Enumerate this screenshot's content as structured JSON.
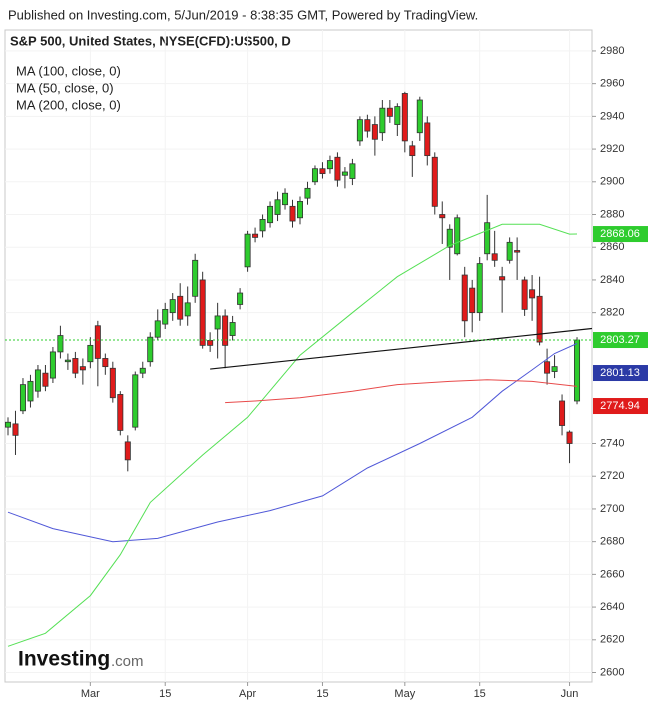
{
  "header": {
    "published": "Published on Investing.com, 5/Jun/2019 - 8:38:35 GMT, Powered by TradingView."
  },
  "logo": {
    "name": "Investing",
    "suffix": ".com"
  },
  "chart_data": {
    "type": "candlestick",
    "title": "S&P 500, United States, NYSE(CFD):US500, D",
    "up_color": "#2ecc2e",
    "down_color": "#e01b1b",
    "candles": {
      "open": [
        2750,
        2752,
        2760,
        2766,
        2772,
        2783,
        2780,
        2796,
        2790,
        2792,
        2787,
        2790,
        2812,
        2792,
        2786,
        2770,
        2741,
        2750,
        2783,
        2790,
        2805,
        2813,
        2820,
        2830,
        2818,
        2830,
        2840,
        2803,
        2810,
        2818,
        2806,
        2825,
        2848,
        2868,
        2870,
        2875,
        2880,
        2886,
        2885,
        2878,
        2890,
        2900,
        2908,
        2908,
        2915,
        2904,
        2902,
        2925,
        2938,
        2935,
        2930,
        2945,
        2935,
        2954,
        2922,
        2930,
        2936,
        2915,
        2880,
        2860,
        2856,
        2843,
        2835,
        2820,
        2856,
        2856,
        2842,
        2852,
        2858,
        2840,
        2834,
        2830,
        2790,
        2784,
        2766,
        2747,
        2766
      ],
      "high": [
        2756,
        2760,
        2780,
        2782,
        2788,
        2788,
        2799,
        2812,
        2795,
        2796,
        2792,
        2805,
        2815,
        2795,
        2790,
        2772,
        2745,
        2784,
        2790,
        2808,
        2822,
        2826,
        2832,
        2838,
        2836,
        2856,
        2845,
        2808,
        2826,
        2822,
        2818,
        2835,
        2870,
        2872,
        2880,
        2888,
        2894,
        2896,
        2889,
        2891,
        2900,
        2910,
        2912,
        2916,
        2918,
        2909,
        2914,
        2940,
        2941,
        2940,
        2950,
        2950,
        2948,
        2955,
        2925,
        2952,
        2940,
        2918,
        2888,
        2874,
        2880,
        2848,
        2840,
        2854,
        2892,
        2870,
        2848,
        2866,
        2866,
        2842,
        2843,
        2842,
        2798,
        2794,
        2770,
        2748,
        2805
      ],
      "low": [
        2745,
        2733,
        2758,
        2762,
        2768,
        2772,
        2777,
        2792,
        2785,
        2780,
        2776,
        2786,
        2775,
        2782,
        2765,
        2745,
        2723,
        2748,
        2780,
        2787,
        2803,
        2810,
        2815,
        2812,
        2812,
        2826,
        2798,
        2796,
        2792,
        2786,
        2803,
        2822,
        2845,
        2863,
        2866,
        2872,
        2876,
        2883,
        2872,
        2874,
        2886,
        2898,
        2902,
        2905,
        2897,
        2896,
        2898,
        2922,
        2927,
        2916,
        2925,
        2936,
        2928,
        2918,
        2903,
        2925,
        2910,
        2880,
        2862,
        2840,
        2855,
        2805,
        2808,
        2815,
        2852,
        2848,
        2820,
        2850,
        2840,
        2818,
        2815,
        2800,
        2776,
        2780,
        2745,
        2728,
        2764
      ],
      "close": [
        2753,
        2745,
        2776,
        2778,
        2785,
        2775,
        2796,
        2806,
        2791,
        2783,
        2785,
        2800,
        2792,
        2787,
        2768,
        2748,
        2730,
        2782,
        2786,
        2805,
        2815,
        2822,
        2828,
        2816,
        2826,
        2852,
        2800,
        2800,
        2818,
        2800,
        2814,
        2832,
        2868,
        2866,
        2877,
        2885,
        2889,
        2893,
        2876,
        2888,
        2896,
        2908,
        2905,
        2913,
        2901,
        2906,
        2911,
        2938,
        2931,
        2926,
        2945,
        2940,
        2946,
        2925,
        2916,
        2950,
        2916,
        2885,
        2878,
        2871,
        2878,
        2815,
        2820,
        2850,
        2875,
        2852,
        2840,
        2863,
        2857,
        2822,
        2829,
        2802,
        2783,
        2787,
        2751,
        2740,
        2803.27
      ]
    },
    "series": [
      {
        "name": "MA (100, close, 0)",
        "color": "#5058d8",
        "label_color": "#2b3aa6",
        "x": [
          0,
          6,
          14,
          20,
          28,
          35,
          42,
          48,
          55,
          62,
          66,
          70,
          73,
          76
        ],
        "values": [
          2698,
          2688,
          2680,
          2682,
          2692,
          2699,
          2708,
          2725,
          2740,
          2756,
          2772,
          2785,
          2795,
          2801.13
        ]
      },
      {
        "name": "MA (50, close, 0)",
        "color": "#55e055",
        "label_color": "#2ecc2e",
        "x": [
          0,
          5,
          11,
          15,
          19,
          26,
          32,
          39,
          46,
          52,
          59,
          66,
          71,
          75,
          76
        ],
        "values": [
          2616,
          2624,
          2647,
          2672,
          2704,
          2733,
          2756,
          2794,
          2820,
          2842,
          2861,
          2874,
          2874,
          2868,
          2868.06
        ]
      },
      {
        "name": "MA (200, close, 0)",
        "color": "#e84a4a",
        "label_color": "#e01b1b",
        "x": [
          29,
          33,
          39,
          46,
          52,
          59,
          64,
          70,
          76
        ],
        "values": [
          2765,
          2766,
          2768,
          2772,
          2776,
          2778,
          2779,
          2778,
          2774.94
        ]
      }
    ],
    "trendline": {
      "x": [
        27,
        78
      ],
      "values": [
        2785.5,
        2810.3
      ],
      "color": "#111111"
    },
    "xlim": [
      -0.4,
      78
    ],
    "ylim": [
      2594.2,
      2992.8
    ],
    "xticks": [
      {
        "value": 11,
        "label": "Mar"
      },
      {
        "value": 21,
        "label": "15"
      },
      {
        "value": 32,
        "label": "Apr"
      },
      {
        "value": 42,
        "label": "15"
      },
      {
        "value": 53,
        "label": "May"
      },
      {
        "value": 63,
        "label": "15"
      },
      {
        "value": 75,
        "label": "Jun"
      }
    ],
    "yticks": [
      2600,
      2620,
      2640,
      2660,
      2680,
      2700,
      2720,
      2740,
      2820,
      2840,
      2860,
      2880,
      2900,
      2920,
      2940,
      2960,
      2980
    ],
    "grid": true
  }
}
